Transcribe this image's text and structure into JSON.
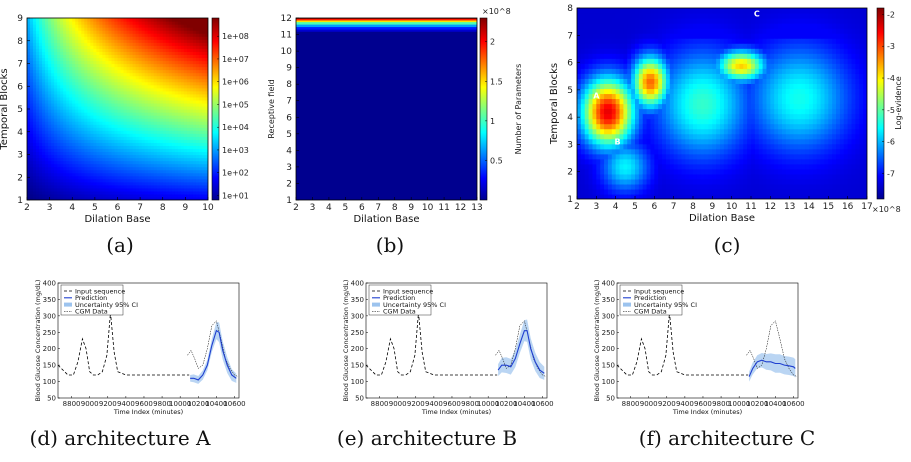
{
  "chart_data": [
    {
      "type": "heatmap",
      "panel": "a",
      "caption": "(a)",
      "xlabel": "Dilation Base",
      "ylabel": "Temporal Blocks",
      "xlim": [
        2,
        10
      ],
      "ylim": [
        1,
        9
      ],
      "xticks": [
        "2",
        "3",
        "4",
        "5",
        "6",
        "7",
        "8",
        "9",
        "10"
      ],
      "yticks": [
        "1",
        "2",
        "3",
        "4",
        "5",
        "6",
        "7",
        "8",
        "9"
      ],
      "colorbar": {
        "label": "Receptive field",
        "scale": "log",
        "range": [
          10,
          1000000000
        ],
        "ticks": [
          "1e+01",
          "1e+02",
          "1e+03",
          "1e+04",
          "1e+05",
          "1e+06",
          "1e+07",
          "1e+08"
        ]
      }
    },
    {
      "type": "heatmap",
      "panel": "b",
      "caption": "(b)",
      "xlabel": "Dilation Base",
      "ylabel": "",
      "xlim": [
        2,
        13
      ],
      "ylim": [
        1,
        12
      ],
      "xticks": [
        "2",
        "3",
        "4",
        "5",
        "6",
        "7",
        "8",
        "9",
        "10",
        "11",
        "12",
        "13"
      ],
      "yticks": [
        "1",
        "2",
        "3",
        "4",
        "5",
        "6",
        "7",
        "8",
        "9",
        "10",
        "11",
        "12"
      ],
      "colorbar": {
        "label": "Number of Parameters",
        "multiplier": "×10^8",
        "range": [
          0,
          2.3
        ],
        "ticks": [
          "0.5",
          "1",
          "1.5",
          "2"
        ]
      }
    },
    {
      "type": "heatmap",
      "panel": "c",
      "caption": "(c)",
      "xlabel": "Dilation Base",
      "ylabel": "Temporal Blocks",
      "xlim": [
        2,
        17
      ],
      "ylim": [
        1,
        8
      ],
      "xticks": [
        "2",
        "3",
        "4",
        "5",
        "6",
        "7",
        "8",
        "9",
        "10",
        "11",
        "12",
        "13",
        "14",
        "15",
        "16",
        "17"
      ],
      "yticks": [
        "1",
        "2",
        "3",
        "4",
        "5",
        "6",
        "7",
        "8"
      ],
      "multiplier": "×10^8",
      "colorbar": {
        "label": "Log-evidence",
        "range": [
          -7.8,
          -1.8
        ],
        "ticks": [
          "-2",
          "-3",
          "-4",
          "-5",
          "-6",
          "-7"
        ]
      },
      "annotations": [
        {
          "text": "A",
          "x": 3,
          "y": 4.8
        },
        {
          "text": "B",
          "x": 4.1,
          "y": 3.1
        },
        {
          "text": "C",
          "x": 11.3,
          "y": 7.8
        }
      ]
    },
    {
      "type": "line",
      "panel": "d",
      "caption": "(d) architecture A",
      "xlabel": "Time Index (minutes)",
      "ylabel": "Blood Glucose Concentration (mg/dL)",
      "xlim": [
        8650,
        10650
      ],
      "ylim": [
        50,
        400
      ],
      "xticks": [
        "8800",
        "9000",
        "9200",
        "9400",
        "9600",
        "9800",
        "10000",
        "10200",
        "10400",
        "10600"
      ],
      "yticks": [
        "50",
        "100",
        "150",
        "200",
        "250",
        "300",
        "350",
        "400"
      ],
      "legend": [
        "Input sequence",
        "Prediction",
        "Uncertainty 95% CI",
        "CGM Data"
      ],
      "series": [
        {
          "name": "Input sequence",
          "x": [
            8650,
            8760,
            8820,
            8870,
            8920,
            8960,
            9000,
            9040,
            9090,
            9140,
            9190,
            9230,
            9270,
            9310,
            9400,
            9600,
            9800,
            10000,
            10100
          ],
          "y": [
            150,
            120,
            120,
            160,
            230,
            200,
            130,
            120,
            120,
            130,
            180,
            310,
            190,
            130,
            120,
            120,
            120,
            120,
            120
          ]
        },
        {
          "name": "Prediction",
          "x": [
            10110,
            10150,
            10200,
            10250,
            10300,
            10350,
            10400,
            10430,
            10470,
            10520,
            10570,
            10620
          ],
          "y": [
            110,
            110,
            105,
            120,
            150,
            210,
            255,
            250,
            195,
            150,
            120,
            110
          ]
        },
        {
          "name": "CGM Data",
          "x": [
            10080,
            10120,
            10160,
            10200,
            10250,
            10300,
            10350,
            10400,
            10450,
            10500,
            10550,
            10600,
            10640
          ],
          "y": [
            180,
            195,
            170,
            140,
            150,
            200,
            270,
            285,
            230,
            170,
            140,
            120,
            115
          ]
        }
      ],
      "ci_halfwidth": [
        10,
        12,
        12,
        14,
        16,
        20,
        26,
        30,
        28,
        24,
        18,
        14
      ]
    },
    {
      "type": "line",
      "panel": "e",
      "caption": "(e) architecture B",
      "xlabel": "Time Index (minutes)",
      "ylabel": "Blood Glucose Concentration (mg/dL)",
      "xlim": [
        8650,
        10650
      ],
      "ylim": [
        50,
        400
      ],
      "xticks": [
        "8800",
        "9000",
        "9200",
        "9400",
        "9600",
        "9800",
        "10000",
        "10200",
        "10400",
        "10600"
      ],
      "yticks": [
        "50",
        "100",
        "150",
        "200",
        "250",
        "300",
        "350",
        "400"
      ],
      "legend": [
        "Input sequence",
        "Prediction",
        "Uncertainty 95% CI",
        "CGM Data"
      ],
      "series": [
        {
          "name": "Input sequence",
          "x": [
            8650,
            8760,
            8820,
            8870,
            8920,
            8960,
            9000,
            9040,
            9090,
            9140,
            9190,
            9230,
            9270,
            9310,
            9400,
            9600,
            9800,
            10000,
            10100
          ],
          "y": [
            150,
            120,
            120,
            160,
            230,
            200,
            130,
            120,
            120,
            130,
            180,
            310,
            190,
            130,
            120,
            120,
            120,
            120,
            120
          ]
        },
        {
          "name": "Prediction",
          "x": [
            10110,
            10150,
            10200,
            10250,
            10300,
            10350,
            10400,
            10430,
            10470,
            10520,
            10570,
            10620
          ],
          "y": [
            135,
            150,
            150,
            145,
            170,
            215,
            255,
            255,
            200,
            160,
            135,
            125
          ]
        },
        {
          "name": "CGM Data",
          "x": [
            10080,
            10120,
            10160,
            10200,
            10250,
            10300,
            10350,
            10400,
            10450,
            10500,
            10550,
            10600,
            10640
          ],
          "y": [
            180,
            195,
            170,
            140,
            150,
            200,
            270,
            285,
            230,
            170,
            140,
            120,
            115
          ]
        }
      ],
      "ci_halfwidth": [
        18,
        22,
        24,
        24,
        26,
        28,
        32,
        34,
        32,
        28,
        24,
        20
      ]
    },
    {
      "type": "line",
      "panel": "f",
      "caption": "(f) architecture C",
      "xlabel": "Time Index (minutes)",
      "ylabel": "Blood Glucose Concentration (mg/dL)",
      "xlim": [
        8650,
        10650
      ],
      "ylim": [
        50,
        400
      ],
      "xticks": [
        "8800",
        "9000",
        "9200",
        "9400",
        "9600",
        "9800",
        "10000",
        "10200",
        "10400",
        "10600"
      ],
      "yticks": [
        "50",
        "100",
        "150",
        "200",
        "250",
        "300",
        "350",
        "400"
      ],
      "legend": [
        "Input sequence",
        "Prediction",
        "Uncertainty 95% CI",
        "CGM Data"
      ],
      "series": [
        {
          "name": "Input sequence",
          "x": [
            8650,
            8760,
            8820,
            8870,
            8920,
            8960,
            9000,
            9040,
            9090,
            9140,
            9190,
            9230,
            9270,
            9310,
            9400,
            9600,
            9800,
            10000,
            10100
          ],
          "y": [
            150,
            120,
            120,
            160,
            230,
            200,
            130,
            120,
            120,
            130,
            180,
            310,
            190,
            130,
            120,
            120,
            120,
            120,
            120
          ]
        },
        {
          "name": "Prediction",
          "x": [
            10110,
            10150,
            10200,
            10250,
            10300,
            10350,
            10400,
            10450,
            10500,
            10550,
            10600,
            10620
          ],
          "y": [
            115,
            140,
            160,
            165,
            160,
            160,
            155,
            155,
            150,
            148,
            145,
            140
          ]
        },
        {
          "name": "CGM Data",
          "x": [
            10080,
            10120,
            10160,
            10200,
            10250,
            10300,
            10350,
            10400,
            10450,
            10500,
            10550,
            10600,
            10640
          ],
          "y": [
            180,
            195,
            170,
            140,
            150,
            200,
            270,
            285,
            230,
            170,
            140,
            120,
            115
          ]
        }
      ],
      "ci_halfwidth": [
        15,
        18,
        20,
        22,
        24,
        26,
        28,
        28,
        28,
        28,
        28,
        28
      ]
    }
  ]
}
